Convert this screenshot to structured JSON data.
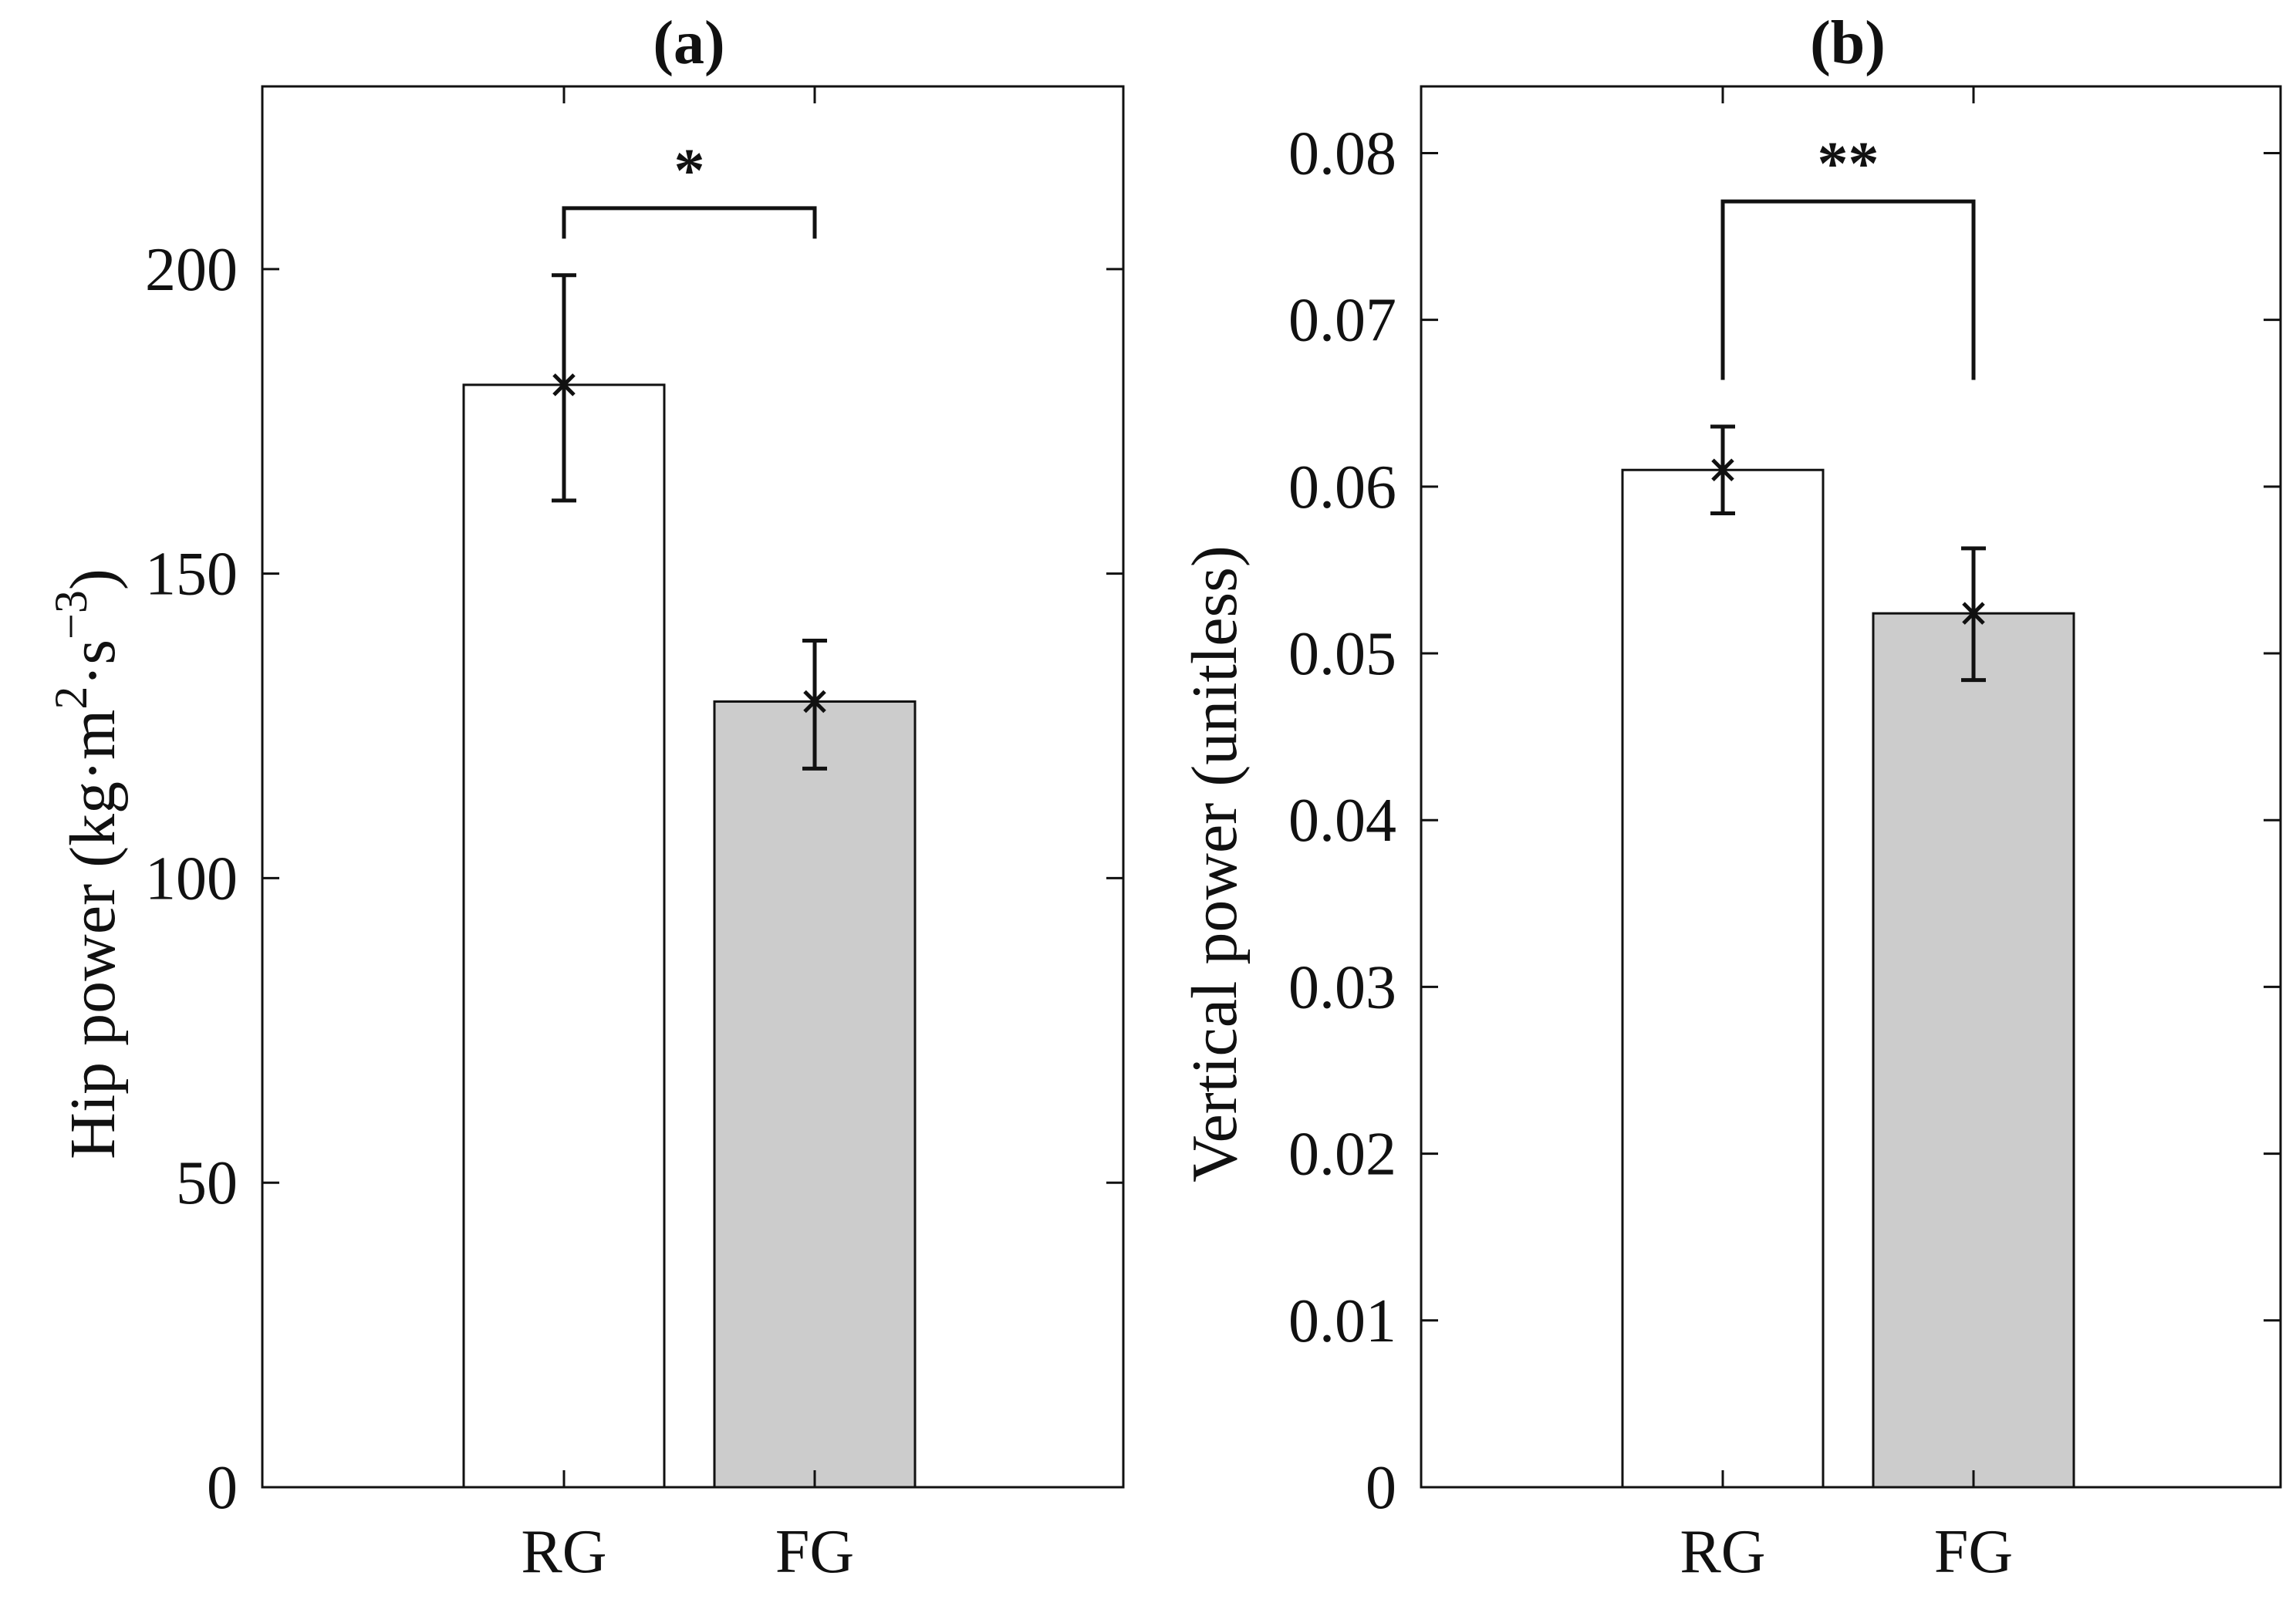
{
  "chart_data": [
    {
      "type": "bar",
      "title": "(a)",
      "ylabel": "Hip power (kg·m²·s⁻³)",
      "ylabel_parts": {
        "main": "Hip power (kg·m",
        "sup1": "2",
        "mid": "·s",
        "sup2": "−3",
        "end": ")"
      },
      "categories": [
        "RG",
        "FG"
      ],
      "values": [
        181,
        129
      ],
      "errors": [
        [
          162,
          199
        ],
        [
          118,
          139
        ]
      ],
      "bar_colors": [
        "#ffffff",
        "#cccccc"
      ],
      "ylim": [
        0,
        230
      ],
      "yticks": [
        0,
        50,
        100,
        150,
        200
      ],
      "ytick_labels": [
        "0",
        "50",
        "100",
        "150",
        "200"
      ],
      "significance": {
        "label": "*",
        "pair": [
          "RG",
          "FG"
        ],
        "bracket_top": 210,
        "bracket_bottom": 205
      }
    },
    {
      "type": "bar",
      "title": "(b)",
      "ylabel": "Vertical power (unitless)",
      "categories": [
        "RG",
        "FG"
      ],
      "values": [
        0.061,
        0.0524
      ],
      "errors": [
        [
          0.0584,
          0.0636
        ],
        [
          0.0484,
          0.0563
        ]
      ],
      "bar_colors": [
        "#ffffff",
        "#cccccc"
      ],
      "ylim": [
        0,
        0.084
      ],
      "yticks": [
        0,
        0.01,
        0.02,
        0.03,
        0.04,
        0.05,
        0.06,
        0.07,
        0.08
      ],
      "ytick_labels": [
        "0",
        "0.01",
        "0.02",
        "0.03",
        "0.04",
        "0.05",
        "0.06",
        "0.07",
        "0.08"
      ],
      "significance": {
        "label": "**",
        "pair": [
          "RG",
          "FG"
        ],
        "bracket_top": 0.0771,
        "bracket_bottom": 0.0664
      }
    }
  ]
}
